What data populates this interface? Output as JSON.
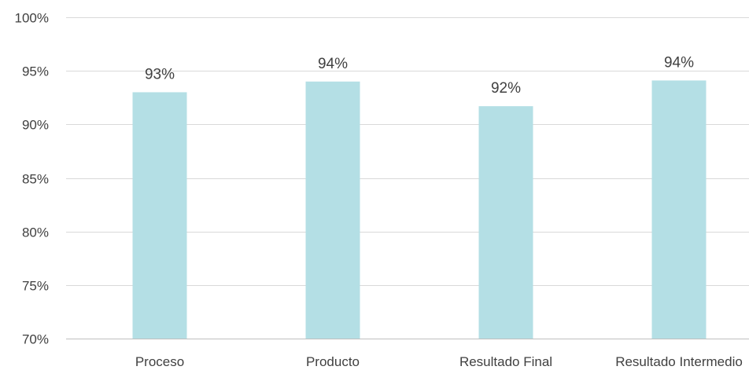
{
  "chart_data": {
    "type": "bar",
    "categories": [
      "Proceso",
      "Producto",
      "Resultado Final",
      "Resultado Intermedio"
    ],
    "values": [
      93,
      94,
      91.7,
      94.1
    ],
    "data_labels": [
      "93%",
      "94%",
      "92%",
      "94%"
    ],
    "ylim": [
      70,
      100
    ],
    "yticks": [
      70,
      75,
      80,
      85,
      90,
      95,
      100
    ],
    "ytick_labels": [
      "70%",
      "75%",
      "80%",
      "85%",
      "90%",
      "95%",
      "100%"
    ],
    "grid": true,
    "legend": "none",
    "bar_color": "#b4dfe5",
    "title": "",
    "xlabel": "",
    "ylabel": ""
  }
}
